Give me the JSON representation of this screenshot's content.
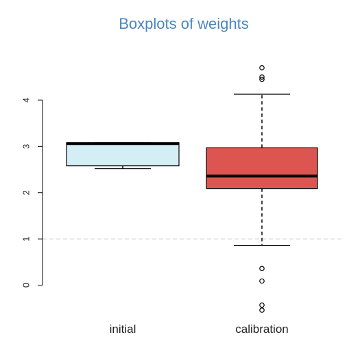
{
  "chart_data": {
    "type": "boxplot",
    "title": "Boxplots of weights",
    "xlabel": "",
    "ylabel": "",
    "ylim": [
      -0.6,
      4.8
    ],
    "yticks": [
      0,
      1,
      2,
      3,
      4
    ],
    "grid": false,
    "reference_line": {
      "y": 1,
      "style": "dashed",
      "color": "#cccccc"
    },
    "categories": [
      "initial",
      "calibration"
    ],
    "series": [
      {
        "category": "initial",
        "color": "#d3eef4",
        "whisker_low": 2.52,
        "q1": 2.58,
        "median": 3.06,
        "q3": 3.08,
        "whisker_high": 3.08,
        "outliers": []
      },
      {
        "category": "calibration",
        "color": "#dc5550",
        "whisker_low": 0.86,
        "q1": 2.09,
        "median": 2.36,
        "q3": 2.97,
        "whisker_high": 4.13,
        "outliers": [
          4.7,
          4.5,
          4.45,
          0.36,
          0.09,
          -0.43,
          -0.54
        ]
      }
    ]
  },
  "colors": {
    "title": "#4a86c0",
    "axis": "#000000",
    "median": "#000000"
  }
}
